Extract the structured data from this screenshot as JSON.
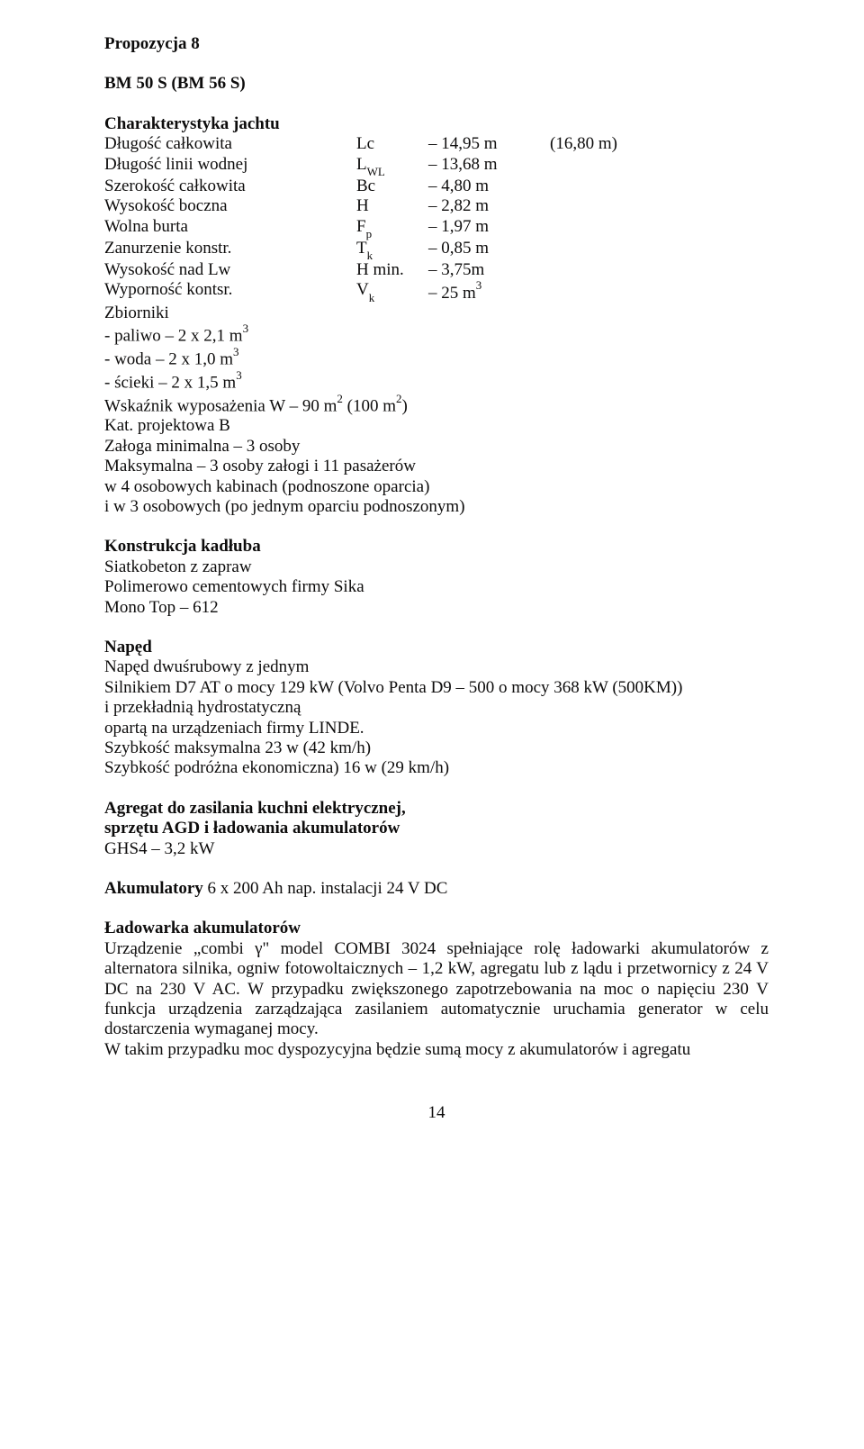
{
  "header": {
    "proposal": "Propozycja 8",
    "model": "BM 50 S   (BM 56 S)"
  },
  "spec": {
    "title": "Charakterystyka jachtu",
    "rows": [
      {
        "label": "Długość całkowita",
        "sym": "Lc",
        "val": "14,95 m",
        "extra": "(16,80 m)"
      },
      {
        "label": "Długość linii wodnej",
        "sym_html": "L<span class=\"sub\">WL</span>",
        "val": "13,68 m",
        "extra": ""
      },
      {
        "label": "Szerokość całkowita",
        "sym": "Bc",
        "val": "4,80 m",
        "extra": ""
      },
      {
        "label": "Wysokość boczna",
        "sym": "H",
        "val": "2,82 m",
        "extra": ""
      },
      {
        "label": "Wolna burta",
        "sym_html": "F<span class=\"sub\">p</span>",
        "val": "1,97 m",
        "extra": ""
      },
      {
        "label": "Zanurzenie konstr.",
        "sym_html": "T<span class=\"sub\">k</span>",
        "val": "0,85 m",
        "extra": ""
      },
      {
        "label": "Wysokość nad Lw",
        "sym": "H min.",
        "val": "3,75m",
        "extra": ""
      },
      {
        "label": "Wyporność kontsr.",
        "sym_html": "V<span class=\"sub\">k</span>",
        "val_html": "25 m<span class=\"sup\">3</span>",
        "extra": ""
      }
    ],
    "tanks_title": "Zbiorniki",
    "tanks": [
      " - paliwo – 2 x 2,1 m",
      " - woda   – 2 x 1,0 m",
      " - ścieki  – 2 x 1,5 m"
    ],
    "tanks_sup": "3",
    "equip_prefix": "Wskaźnik wyposażenia W – 90 m",
    "equip_sup1": "2",
    "equip_mid": "   (100 m",
    "equip_sup2": "2",
    "equip_suffix": ")",
    "cat": "Kat. projektowa B",
    "crew1": "Załoga minimalna  – 3 osoby",
    "crew2": "Maksymalna – 3 osoby załogi i 11 pasażerów",
    "crew3": "w 4 osobowych kabinach (podnoszone oparcia)",
    "crew4": "i w 3 osobowych (po jednym oparciu podnoszonym)"
  },
  "hull": {
    "title": "Konstrukcja kadłuba",
    "l1": "Siatkobeton z zapraw",
    "l2": "Polimerowo cementowych firmy Sika",
    "l3": "Mono Top – 612"
  },
  "drive": {
    "title": "Napęd",
    "l1": "Napęd dwuśrubowy z jednym",
    "l2": "Silnikiem D7 AT o mocy 129 kW   (Volvo Penta D9 – 500 o mocy 368 kW (500KM))",
    "l3": "i przekładnią hydrostatyczną",
    "l4": "opartą na urządzeniach firmy LINDE.",
    "l5": "Szybkość maksymalna 23 w (42 km/h)",
    "l6": "Szybkość podróżna ekonomiczna) 16 w (29 km/h)"
  },
  "genset": {
    "title1": "Agregat do zasilania kuchni elektrycznej,",
    "title2": "sprzętu AGD i ładowania akumulatorów",
    "l1": "GHS4 – 3,2 kW"
  },
  "battery": {
    "bold": "Akumulatory",
    "rest": " 6 x 200 Ah nap. instalacji 24 V DC"
  },
  "charger": {
    "title": "Ładowarka akumulatorów",
    "para": "Urządzenie „combi γ\" model COMBI 3024 spełniające rolę ładowarki akumulatorów z alternatora silnika, ogniw fotowoltaicznych – 1,2 kW, agregatu lub z lądu i przetwornicy z 24 V DC na 230 V AC. W przypadku zwiększonego zapotrzebowania na moc o napięciu 230 V funkcja urządzenia zarządzająca zasilaniem automatycznie uruchamia generator w celu dostarczenia wymaganej mocy.",
    "para2": "W takim przypadku moc dyspozycyjna będzie sumą mocy z akumulatorów i agregatu"
  },
  "footer": {
    "page": "14"
  }
}
